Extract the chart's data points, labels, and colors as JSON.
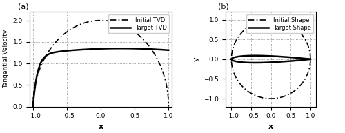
{
  "fig_width": 5.0,
  "fig_height": 1.93,
  "dpi": 100,
  "subplot_a": {
    "label": "(a)",
    "xlabel": "x",
    "ylabel": "Tangential Velocity",
    "xlim": [
      -1.05,
      1.05
    ],
    "ylim": [
      0,
      2.2
    ],
    "xticks": [
      -1,
      -0.5,
      0,
      0.5,
      1
    ],
    "yticks": [
      0,
      0.5,
      1.0,
      1.5,
      2.0
    ],
    "legend_entries": [
      "Initial TVD",
      "Target TVD"
    ]
  },
  "subplot_b": {
    "label": "(b)",
    "xlabel": "x",
    "ylabel": "y",
    "xlim": [
      -1.15,
      1.15
    ],
    "ylim": [
      -1.2,
      1.2
    ],
    "xticks": [
      -1,
      -0.5,
      0,
      0.5,
      1
    ],
    "yticks": [
      -1,
      -0.5,
      0,
      0.5,
      1
    ],
    "legend_entries": [
      "Initial Shape",
      "Target Shape"
    ]
  },
  "line_color": "black",
  "initial_linestyle": "-.",
  "target_linestyle": "-",
  "linewidth_initial": 1.2,
  "linewidth_target": 1.8
}
